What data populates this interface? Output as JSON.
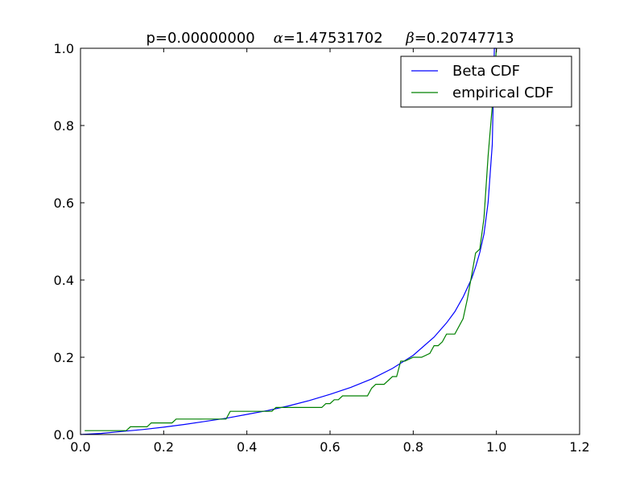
{
  "chart_data": {
    "type": "line",
    "title": {
      "p_text": "p=0.00000000",
      "alpha_symbol": "α",
      "alpha_value": "=1.47531702",
      "beta_symbol": "β",
      "beta_value": "=0.20747713"
    },
    "xlabel": "",
    "ylabel": "",
    "xlim": [
      0.0,
      1.2
    ],
    "ylim": [
      0.0,
      1.0
    ],
    "xticks": [
      0.0,
      0.2,
      0.4,
      0.6,
      0.8,
      1.0,
      1.2
    ],
    "yticks": [
      0.0,
      0.2,
      0.4,
      0.6,
      0.8,
      1.0
    ],
    "xtick_labels": [
      "0.0",
      "0.2",
      "0.4",
      "0.6",
      "0.8",
      "1.0",
      "1.2"
    ],
    "ytick_labels": [
      "0.0",
      "0.2",
      "0.4",
      "0.6",
      "0.8",
      "1.0"
    ],
    "grid": false,
    "legend_position": "top-right",
    "series": [
      {
        "name": "Beta CDF",
        "color": "#0000ff",
        "x": [
          0.0,
          0.05,
          0.1,
          0.15,
          0.2,
          0.25,
          0.3,
          0.35,
          0.4,
          0.45,
          0.5,
          0.55,
          0.6,
          0.65,
          0.7,
          0.75,
          0.8,
          0.85,
          0.88,
          0.9,
          0.92,
          0.94,
          0.95,
          0.96,
          0.97,
          0.98,
          0.99,
          0.995,
          1.0
        ],
        "y": [
          0.0,
          0.003,
          0.008,
          0.013,
          0.019,
          0.026,
          0.034,
          0.042,
          0.052,
          0.062,
          0.074,
          0.088,
          0.104,
          0.122,
          0.144,
          0.171,
          0.205,
          0.252,
          0.289,
          0.318,
          0.356,
          0.403,
          0.434,
          0.471,
          0.519,
          0.6,
          0.75,
          1.0,
          1.0
        ]
      },
      {
        "name": "empirical CDF",
        "color": "#008000",
        "x": [
          0.01,
          0.11,
          0.12,
          0.16,
          0.17,
          0.22,
          0.23,
          0.35,
          0.36,
          0.46,
          0.47,
          0.58,
          0.59,
          0.6,
          0.61,
          0.62,
          0.63,
          0.64,
          0.69,
          0.7,
          0.71,
          0.73,
          0.75,
          0.76,
          0.77,
          0.78,
          0.8,
          0.81,
          0.82,
          0.84,
          0.85,
          0.86,
          0.87,
          0.88,
          0.89,
          0.9,
          0.92,
          0.93,
          0.94,
          0.95,
          0.96,
          0.97,
          0.98,
          0.99,
          1.0
        ],
        "y": [
          0.01,
          0.01,
          0.02,
          0.02,
          0.03,
          0.03,
          0.04,
          0.04,
          0.06,
          0.06,
          0.07,
          0.07,
          0.08,
          0.08,
          0.09,
          0.09,
          0.1,
          0.1,
          0.1,
          0.12,
          0.13,
          0.13,
          0.15,
          0.15,
          0.19,
          0.19,
          0.2,
          0.2,
          0.2,
          0.21,
          0.23,
          0.23,
          0.24,
          0.26,
          0.26,
          0.26,
          0.3,
          0.35,
          0.41,
          0.47,
          0.48,
          0.56,
          0.72,
          0.85,
          1.0
        ]
      }
    ]
  }
}
